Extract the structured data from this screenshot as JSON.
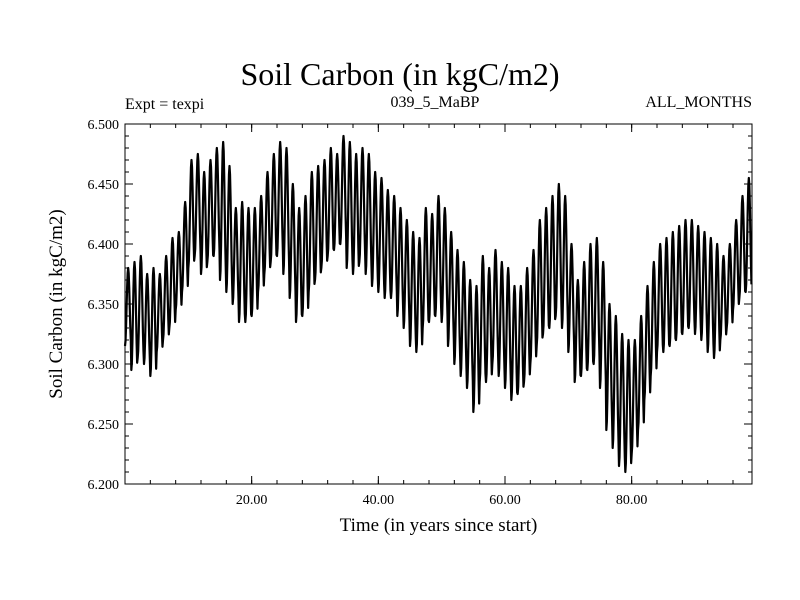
{
  "chart_data": {
    "type": "line",
    "title": "Soil Carbon (in kgC/m2)",
    "subtitle": "039_5_MaBP",
    "experiment_label": "Expt = texpi",
    "period_label": "ALL_MONTHS",
    "xlabel": "Time (in years since start)",
    "ylabel": "Soil Carbon (in kgC/m2)",
    "xlim": [
      0,
      99
    ],
    "ylim": [
      6.2,
      6.5
    ],
    "x_ticks": [
      20,
      40,
      60,
      80
    ],
    "x_tick_labels": [
      "20.00",
      "40.00",
      "60.00",
      "80.00"
    ],
    "y_ticks": [
      6.2,
      6.25,
      6.3,
      6.35,
      6.4,
      6.45,
      6.5
    ],
    "y_tick_labels": [
      "6.200",
      "6.250",
      "6.300",
      "6.350",
      "6.400",
      "6.450",
      "6.500"
    ],
    "series": [
      {
        "name": "Soil Carbon",
        "color": "#000000",
        "sampling": "one seasonal cycle per year",
        "years": [
          0,
          1,
          2,
          3,
          4,
          5,
          6,
          7,
          8,
          9,
          10,
          11,
          12,
          13,
          14,
          15,
          16,
          17,
          18,
          19,
          20,
          21,
          22,
          23,
          24,
          25,
          26,
          27,
          28,
          29,
          30,
          31,
          32,
          33,
          34,
          35,
          36,
          37,
          38,
          39,
          40,
          41,
          42,
          43,
          44,
          45,
          46,
          47,
          48,
          49,
          50,
          51,
          52,
          53,
          54,
          55,
          56,
          57,
          58,
          59,
          60,
          61,
          62,
          63,
          64,
          65,
          66,
          67,
          68,
          69,
          70,
          71,
          72,
          73,
          74,
          75,
          76,
          77,
          78,
          79,
          80,
          81,
          82,
          83,
          84,
          85,
          86,
          87,
          88,
          89,
          90,
          91,
          92,
          93,
          94,
          95,
          96,
          97,
          98
        ],
        "annual_max": [
          6.38,
          6.385,
          6.39,
          6.375,
          6.38,
          6.375,
          6.39,
          6.405,
          6.41,
          6.435,
          6.47,
          6.475,
          6.46,
          6.47,
          6.48,
          6.485,
          6.465,
          6.43,
          6.435,
          6.43,
          6.43,
          6.44,
          6.46,
          6.475,
          6.485,
          6.48,
          6.45,
          6.43,
          6.44,
          6.46,
          6.465,
          6.47,
          6.48,
          6.475,
          6.49,
          6.485,
          6.475,
          6.48,
          6.475,
          6.46,
          6.455,
          6.445,
          6.44,
          6.43,
          6.42,
          6.41,
          6.405,
          6.43,
          6.425,
          6.44,
          6.43,
          6.41,
          6.395,
          6.385,
          6.37,
          6.365,
          6.39,
          6.38,
          6.395,
          6.385,
          6.38,
          6.365,
          6.365,
          6.38,
          6.395,
          6.42,
          6.43,
          6.44,
          6.45,
          6.44,
          6.4,
          6.37,
          6.385,
          6.4,
          6.405,
          6.385,
          6.35,
          6.34,
          6.325,
          6.32,
          6.32,
          6.34,
          6.365,
          6.385,
          6.4,
          6.405,
          6.41,
          6.415,
          6.42,
          6.42,
          6.415,
          6.41,
          6.405,
          6.4,
          6.39,
          6.4,
          6.42,
          6.44,
          6.455
        ],
        "annual_min": [
          6.315,
          6.295,
          6.305,
          6.3,
          6.29,
          6.31,
          6.32,
          6.33,
          6.345,
          6.36,
          6.38,
          6.39,
          6.375,
          6.385,
          6.39,
          6.37,
          6.36,
          6.35,
          6.335,
          6.335,
          6.34,
          6.36,
          6.375,
          6.385,
          6.39,
          6.375,
          6.355,
          6.335,
          6.34,
          6.36,
          6.37,
          6.38,
          6.39,
          6.395,
          6.4,
          6.38,
          6.375,
          6.385,
          6.375,
          6.365,
          6.36,
          6.355,
          6.355,
          6.34,
          6.33,
          6.315,
          6.31,
          6.33,
          6.335,
          6.34,
          6.335,
          6.315,
          6.3,
          6.29,
          6.28,
          6.26,
          6.285,
          6.285,
          6.3,
          6.29,
          6.28,
          6.27,
          6.275,
          6.285,
          6.3,
          6.315,
          6.325,
          6.33,
          6.34,
          6.33,
          6.31,
          6.285,
          6.29,
          6.295,
          6.3,
          6.28,
          6.245,
          6.23,
          6.215,
          6.21,
          6.225,
          6.245,
          6.27,
          6.29,
          6.31,
          6.31,
          6.315,
          6.32,
          6.325,
          6.33,
          6.325,
          6.32,
          6.31,
          6.305,
          6.32,
          6.33,
          6.345,
          6.355,
          6.36
        ]
      }
    ]
  }
}
